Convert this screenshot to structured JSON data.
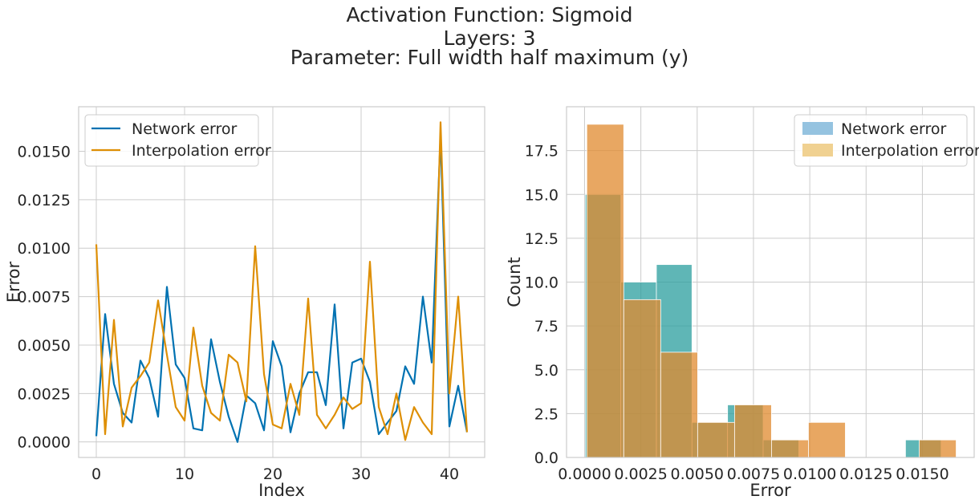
{
  "figure": {
    "title_lines": [
      "Activation Function: Sigmoid",
      "Layers: 3",
      "Parameter: Full width half maximum (y)"
    ]
  },
  "chart_data": [
    {
      "type": "line",
      "xlabel": "Index",
      "ylabel": "Error",
      "xlim": [
        -2,
        44
      ],
      "ylim": [
        -0.0008,
        0.0173
      ],
      "xticks": [
        0,
        10,
        20,
        30,
        40
      ],
      "xtick_labels": [
        "0",
        "10",
        "20",
        "30",
        "40"
      ],
      "yticks": [
        0.0,
        0.0025,
        0.005,
        0.0075,
        0.01,
        0.0125,
        0.015
      ],
      "ytick_labels": [
        "0.0000",
        "0.0025",
        "0.0050",
        "0.0075",
        "0.0100",
        "0.0125",
        "0.0150"
      ],
      "grid": true,
      "legend": "upper-left",
      "x": [
        0,
        1,
        2,
        3,
        4,
        5,
        6,
        7,
        8,
        9,
        10,
        11,
        12,
        13,
        14,
        15,
        16,
        17,
        18,
        19,
        20,
        21,
        22,
        23,
        24,
        25,
        26,
        27,
        28,
        29,
        30,
        31,
        32,
        33,
        34,
        35,
        36,
        37,
        38,
        39,
        40,
        41,
        42
      ],
      "series": [
        {
          "name": "Network error",
          "color": "#0072b2",
          "values": [
            0.0003,
            0.0066,
            0.003,
            0.0015,
            0.001,
            0.0042,
            0.0033,
            0.0013,
            0.008,
            0.004,
            0.0033,
            0.0007,
            0.0006,
            0.0053,
            0.0031,
            0.0013,
            0.0,
            0.0024,
            0.002,
            0.0006,
            0.0052,
            0.0039,
            0.0005,
            0.0025,
            0.0036,
            0.0036,
            0.0019,
            0.0071,
            0.0007,
            0.0041,
            0.0043,
            0.0031,
            0.0004,
            0.001,
            0.0016,
            0.0039,
            0.003,
            0.0075,
            0.0041,
            0.0158,
            0.0008,
            0.0029,
            0.0005
          ]
        },
        {
          "name": "Interpolation error",
          "color": "#de8f05",
          "values": [
            0.0102,
            0.0004,
            0.0063,
            0.0008,
            0.0028,
            0.0034,
            0.0041,
            0.0073,
            0.0045,
            0.0018,
            0.0011,
            0.0059,
            0.0029,
            0.0015,
            0.0011,
            0.0045,
            0.0041,
            0.0021,
            0.0101,
            0.0035,
            0.0009,
            0.0007,
            0.003,
            0.0014,
            0.0074,
            0.0014,
            0.0007,
            0.0014,
            0.0023,
            0.0017,
            0.002,
            0.0093,
            0.0018,
            0.0004,
            0.0025,
            0.0001,
            0.0018,
            0.001,
            0.0004,
            0.0165,
            0.0025,
            0.0075,
            0.0005
          ]
        }
      ]
    },
    {
      "type": "bar",
      "xlabel": "Error",
      "ylabel": "Count",
      "xlim": [
        -0.0008,
        0.0173
      ],
      "ylim": [
        0,
        20
      ],
      "xticks": [
        0.0,
        0.0025,
        0.005,
        0.0075,
        0.01,
        0.0125,
        0.015
      ],
      "xtick_labels": [
        "0.0000",
        "0.0025",
        "0.0050",
        "0.0075",
        "0.0100",
        "0.0125",
        "0.0150"
      ],
      "yticks": [
        0,
        2.5,
        5,
        7.5,
        10,
        12.5,
        15,
        17.5
      ],
      "ytick_labels": [
        "0.0",
        "2.5",
        "5.0",
        "7.5",
        "10.0",
        "12.5",
        "15.0",
        "17.5"
      ],
      "grid": true,
      "legend": "upper-right",
      "series": [
        {
          "name": "Network error",
          "color": "#2a9d9d",
          "legend_color": "#95c3e0",
          "bin_edges": [
            3e-05,
            0.00161,
            0.00319,
            0.00477,
            0.00635,
            0.00793,
            0.00951,
            0.01109,
            0.01267,
            0.01425,
            0.01583
          ],
          "counts": [
            15,
            10,
            11,
            2,
            3,
            1,
            0,
            0,
            0,
            1
          ]
        },
        {
          "name": "Interpolation error",
          "color": "#e08a2e",
          "legend_color": "#f0d191",
          "bin_edges": [
            0.0001,
            0.00174,
            0.00338,
            0.00502,
            0.00666,
            0.0083,
            0.00994,
            0.01158,
            0.01322,
            0.01486,
            0.0165
          ],
          "counts": [
            19,
            9,
            6,
            2,
            3,
            1,
            2,
            0,
            0,
            1
          ]
        }
      ]
    }
  ]
}
